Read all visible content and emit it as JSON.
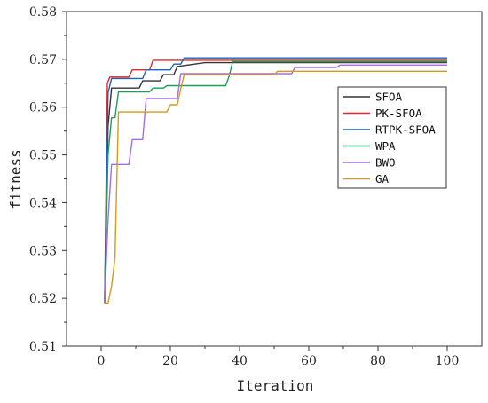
{
  "chart_data": {
    "type": "line",
    "title": "",
    "xlabel": "Iteration",
    "ylabel": "fitness",
    "xlim": [
      -10,
      110
    ],
    "ylim": [
      0.51,
      0.58
    ],
    "xticks": [
      0,
      20,
      40,
      60,
      80,
      100
    ],
    "xtick_labels": [
      "0",
      "20",
      "40",
      "60",
      "80",
      "100"
    ],
    "yticks": [
      0.51,
      0.52,
      0.53,
      0.54,
      0.55,
      0.56,
      0.57,
      0.58
    ],
    "ytick_labels": [
      "0.51",
      "0.52",
      "0.53",
      "0.54",
      "0.55",
      "0.56",
      "0.57",
      "0.58"
    ],
    "grid": false,
    "legend_position": "right",
    "series": [
      {
        "name": "SFOA",
        "color": "#333333",
        "points": [
          [
            1,
            0.519
          ],
          [
            2,
            0.556
          ],
          [
            3,
            0.564
          ],
          [
            11,
            0.564
          ],
          [
            12,
            0.5655
          ],
          [
            17,
            0.5655
          ],
          [
            18,
            0.5668
          ],
          [
            21,
            0.5668
          ],
          [
            22,
            0.5685
          ],
          [
            30,
            0.5693
          ],
          [
            100,
            0.5693
          ]
        ]
      },
      {
        "name": "PK-SFOA",
        "color": "#e8262a",
        "points": [
          [
            1,
            0.519
          ],
          [
            1.8,
            0.565
          ],
          [
            2.5,
            0.5663
          ],
          [
            8,
            0.5663
          ],
          [
            9,
            0.5678
          ],
          [
            14,
            0.5678
          ],
          [
            15,
            0.5698
          ],
          [
            100,
            0.5698
          ]
        ]
      },
      {
        "name": "RTPK-SFOA",
        "color": "#1f5fbf",
        "points": [
          [
            1,
            0.519
          ],
          [
            2,
            0.563
          ],
          [
            3,
            0.566
          ],
          [
            12,
            0.566
          ],
          [
            13,
            0.5678
          ],
          [
            20,
            0.5678
          ],
          [
            21,
            0.569
          ],
          [
            23,
            0.569
          ],
          [
            24,
            0.5703
          ],
          [
            100,
            0.5703
          ]
        ]
      },
      {
        "name": "WPA",
        "color": "#1a9e5a",
        "points": [
          [
            1,
            0.519
          ],
          [
            2,
            0.55
          ],
          [
            3,
            0.5578
          ],
          [
            4,
            0.5578
          ],
          [
            5,
            0.5632
          ],
          [
            14,
            0.5632
          ],
          [
            15,
            0.564
          ],
          [
            18,
            0.564
          ],
          [
            19,
            0.5645
          ],
          [
            36,
            0.5645
          ],
          [
            37,
            0.5665
          ],
          [
            38,
            0.5695
          ],
          [
            100,
            0.5695
          ]
        ]
      },
      {
        "name": "BWO",
        "color": "#a86ae6",
        "points": [
          [
            1,
            0.519
          ],
          [
            2,
            0.5365
          ],
          [
            3,
            0.548
          ],
          [
            8,
            0.548
          ],
          [
            9,
            0.5532
          ],
          [
            12,
            0.5532
          ],
          [
            13,
            0.5618
          ],
          [
            22,
            0.5618
          ],
          [
            23,
            0.567
          ],
          [
            55,
            0.567
          ],
          [
            56,
            0.5683
          ],
          [
            68,
            0.5683
          ],
          [
            69,
            0.5688
          ],
          [
            100,
            0.5688
          ]
        ]
      },
      {
        "name": "GA",
        "color": "#d49a1f",
        "points": [
          [
            1,
            0.519
          ],
          [
            2,
            0.519
          ],
          [
            3,
            0.5225
          ],
          [
            4,
            0.5285
          ],
          [
            5,
            0.559
          ],
          [
            19,
            0.559
          ],
          [
            20,
            0.5605
          ],
          [
            22,
            0.5605
          ],
          [
            23,
            0.5638
          ],
          [
            24,
            0.5668
          ],
          [
            50,
            0.5668
          ],
          [
            51,
            0.5675
          ],
          [
            100,
            0.5675
          ]
        ]
      }
    ]
  }
}
